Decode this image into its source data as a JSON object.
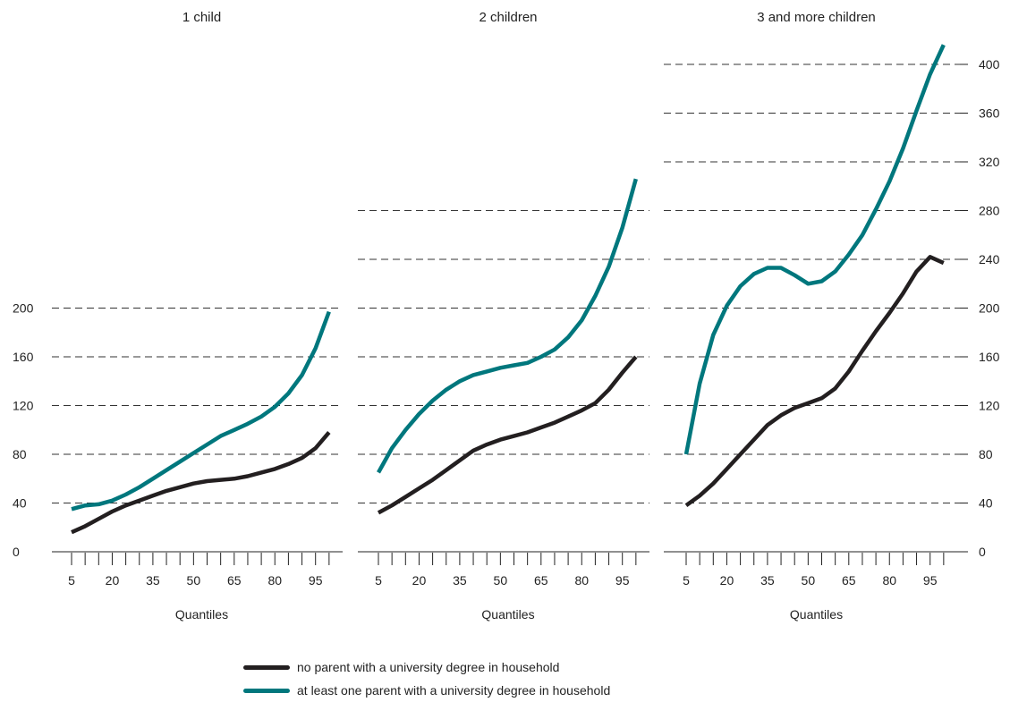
{
  "chart_data": {
    "type": "line",
    "y_axis": {
      "ticks": [
        0,
        40,
        80,
        120,
        160,
        200,
        240,
        280,
        320,
        360,
        400
      ],
      "ylim": [
        0,
        420
      ]
    },
    "x_tick_labels": [
      "5",
      "20",
      "35",
      "50",
      "65",
      "80",
      "95"
    ],
    "xlabel": "Quantiles",
    "grid": "dashed horizontal",
    "legend_placement": "bottom",
    "series_colors": {
      "none": "#231f20",
      "one": "#00777d"
    },
    "legend": [
      {
        "key": "none",
        "label": "no parent with a university degree in household"
      },
      {
        "key": "one",
        "label": "at least one parent with a university degree in household"
      }
    ],
    "panels": [
      {
        "title": "1 child",
        "x": [
          5,
          10,
          15,
          20,
          25,
          30,
          35,
          40,
          45,
          50,
          55,
          60,
          65,
          70,
          75,
          80,
          85,
          90,
          95,
          100
        ],
        "series": [
          {
            "key": "none",
            "values": [
              16,
              21,
              27,
              33,
              38,
              42,
              46,
              50,
              53,
              56,
              58,
              59,
              60,
              62,
              65,
              68,
              72,
              77,
              85,
              98
            ]
          },
          {
            "key": "one",
            "values": [
              35,
              38,
              39,
              42,
              47,
              53,
              60,
              67,
              74,
              81,
              88,
              95,
              100,
              105,
              111,
              119,
              130,
              145,
              167,
              197
            ]
          }
        ]
      },
      {
        "title": "2 children",
        "x": [
          5,
          10,
          15,
          20,
          25,
          30,
          35,
          40,
          45,
          50,
          55,
          60,
          65,
          70,
          75,
          80,
          85,
          90,
          95,
          100
        ],
        "series": [
          {
            "key": "none",
            "values": [
              32,
              38,
              45,
              52,
              59,
              67,
              75,
              83,
              88,
              92,
              95,
              98,
              102,
              106,
              111,
              116,
              122,
              133,
              147,
              160
            ]
          },
          {
            "key": "one",
            "values": [
              65,
              85,
              100,
              113,
              124,
              133,
              140,
              145,
              148,
              151,
              153,
              155,
              160,
              166,
              176,
              190,
              210,
              234,
              266,
              306
            ]
          }
        ]
      },
      {
        "title": "3 and more children",
        "x": [
          5,
          10,
          15,
          20,
          25,
          30,
          35,
          40,
          45,
          50,
          55,
          60,
          65,
          70,
          75,
          80,
          85,
          90,
          95,
          100
        ],
        "series": [
          {
            "key": "none",
            "values": [
              38,
              46,
              56,
              68,
              80,
              92,
              104,
              112,
              118,
              122,
              126,
              134,
              148,
              165,
              181,
              196,
              212,
              230,
              242,
              237
            ]
          },
          {
            "key": "one",
            "values": [
              80,
              138,
              178,
              202,
              218,
              228,
              233,
              233,
              227,
              220,
              222,
              230,
              244,
              260,
              281,
              304,
              331,
              362,
              392,
              416
            ]
          }
        ]
      }
    ]
  }
}
